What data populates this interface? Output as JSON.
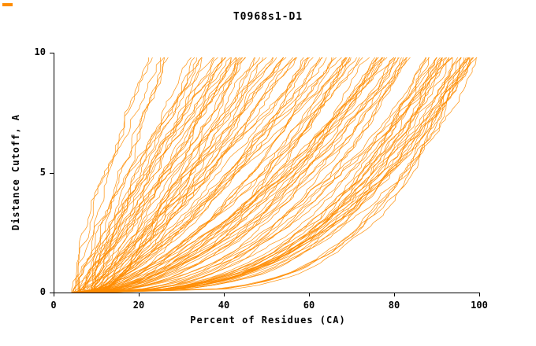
{
  "figure": {
    "title": "T0968s1-D1",
    "background": "#ffffff",
    "accent_color": "#ff8c00"
  },
  "chart_data": {
    "type": "line",
    "title": "T0968s1-D1",
    "xlabel": "Percent of Residues (CA)",
    "ylabel": "Distance Cutoff, A",
    "xlim": [
      0,
      100
    ],
    "ylim": [
      0,
      10
    ],
    "x_ticks": [
      0,
      20,
      40,
      60,
      80,
      100
    ],
    "y_ticks": [
      0,
      5,
      10
    ],
    "grid": false,
    "legend": "none",
    "series_color": "#ff8c00",
    "description": "Ensemble of many overlapping per-model cumulative distance curves (CASP-style GDT plot): each thin orange curve is monotonically non-decreasing, starting near (5,0) and rising to distance cutoff ~9.8 A at a percent-of-residues value between ~22 and 100.",
    "envelope_fastest_curve": {
      "y": [
        0,
        2,
        4,
        6,
        8,
        9.8
      ],
      "x": [
        6,
        13,
        17,
        20,
        22,
        24
      ]
    },
    "envelope_slowest_curve": {
      "y": [
        0,
        2,
        4,
        6,
        8,
        9.8
      ],
      "x": [
        8,
        55,
        75,
        85,
        93,
        100
      ]
    },
    "ensemble": {
      "count": 125,
      "seed": 20180601,
      "x_start_range": [
        4,
        11
      ],
      "x_top_range": [
        22,
        100
      ],
      "y_top": 9.8,
      "points_per_curve": 64
    }
  }
}
